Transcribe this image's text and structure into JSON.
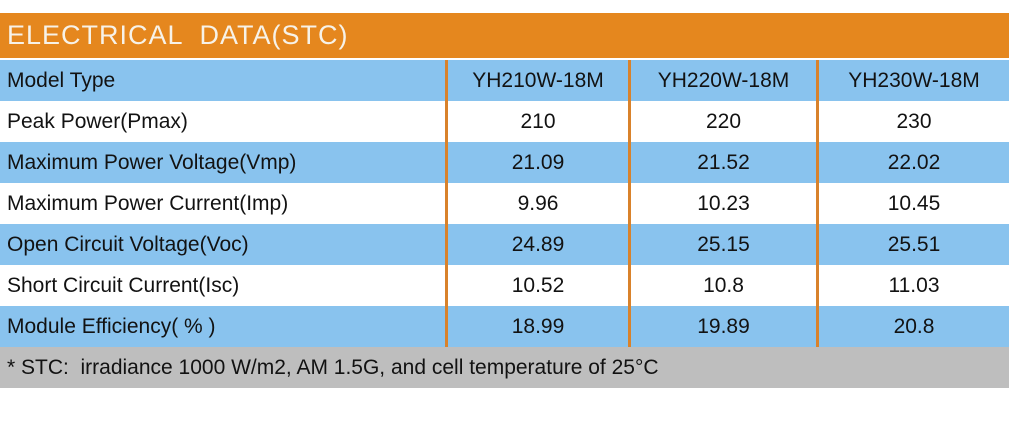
{
  "title": "ELECTRICAL  DATA(STC)",
  "colors": {
    "title_bg": "#E5871E",
    "row_blue": "#89C3EE",
    "row_white": "#FFFFFF",
    "separator_orange": "#D9822B",
    "footer_bg": "#BEBEBE",
    "title_text": "#F7F2E8",
    "body_text": "#121212"
  },
  "table": {
    "header": {
      "label": "Model Type",
      "columns": [
        "YH210W-18M",
        "YH220W-18M",
        "YH230W-18M"
      ]
    },
    "rows": [
      {
        "label": "Peak Power(Pmax)",
        "values": [
          "210",
          "220",
          "230"
        ]
      },
      {
        "label": "Maximum Power Voltage(Vmp)",
        "values": [
          "21.09",
          "21.52",
          "22.02"
        ]
      },
      {
        "label": "Maximum Power Current(Imp)",
        "values": [
          "9.96",
          "10.23",
          "10.45"
        ]
      },
      {
        "label": "Open Circuit Voltage(Voc)",
        "values": [
          "24.89",
          "25.15",
          "25.51"
        ]
      },
      {
        "label": "Short Circuit Current(Isc)",
        "values": [
          "10.52",
          "10.8",
          "11.03"
        ]
      },
      {
        "label": "Module Efficiency( % )",
        "values": [
          "18.99",
          "19.89",
          "20.8"
        ]
      }
    ]
  },
  "footnote": "* STC:  irradiance 1000 W/m2, AM 1.5G, and cell temperature of 25°C"
}
